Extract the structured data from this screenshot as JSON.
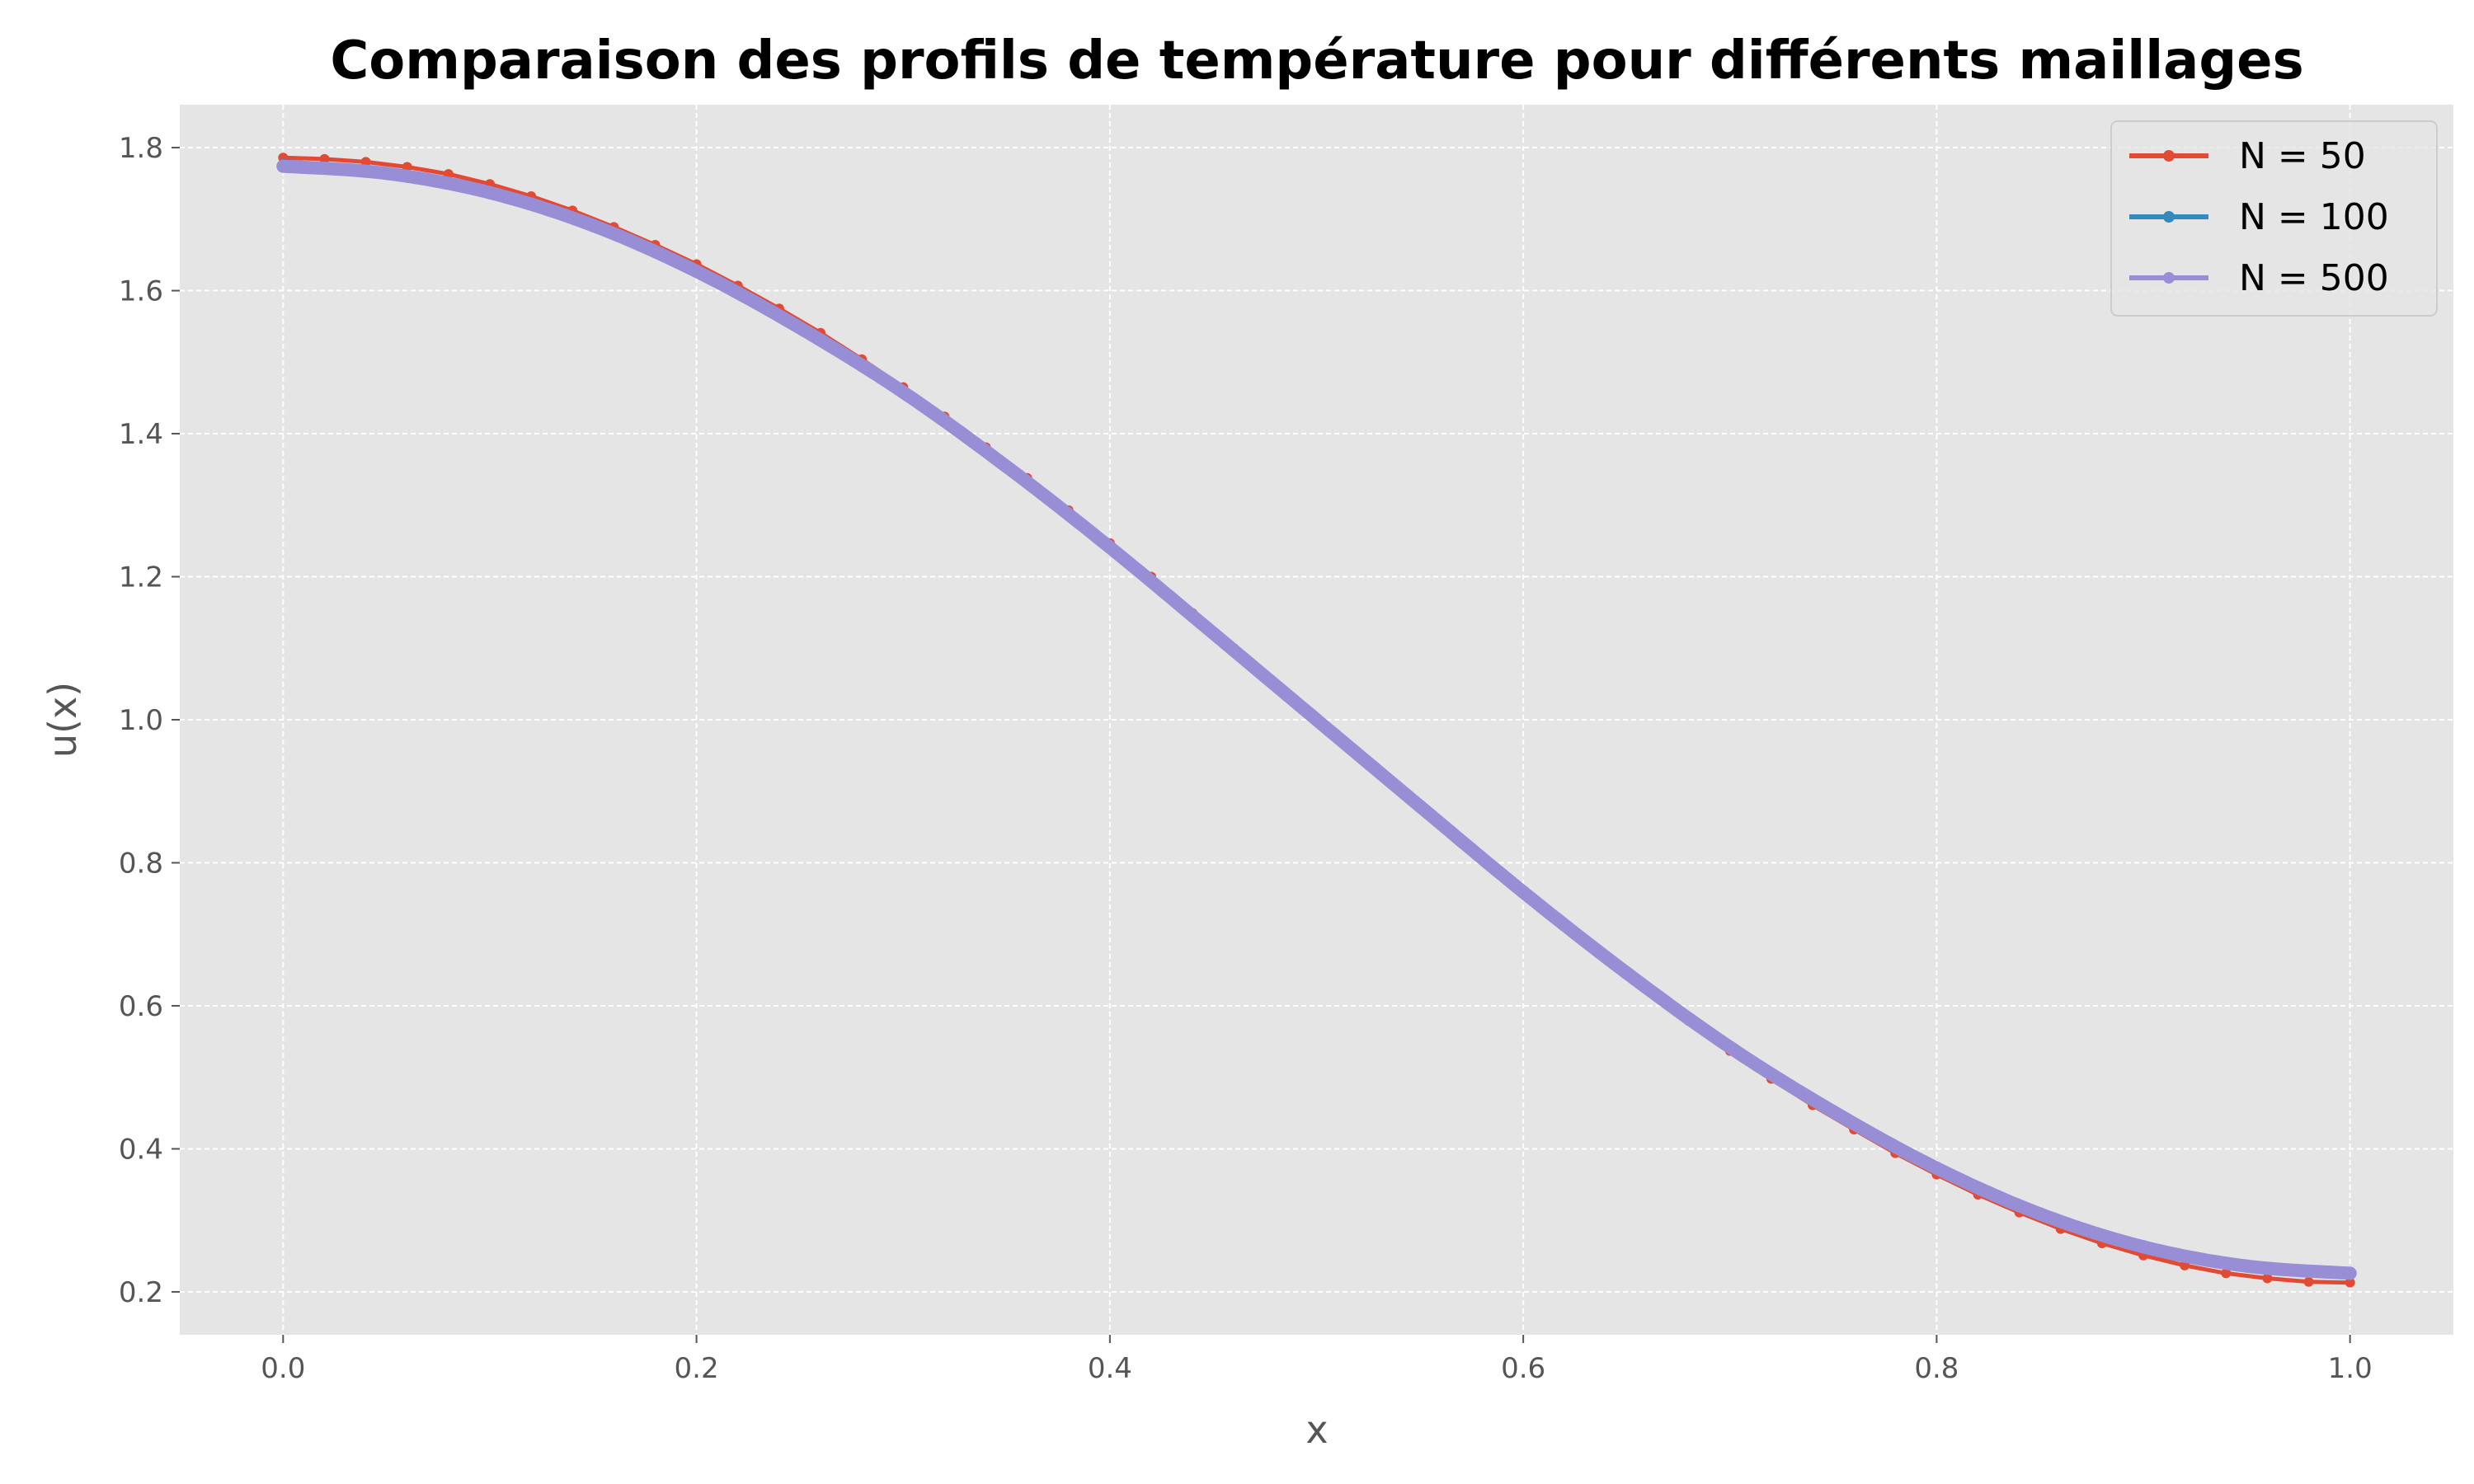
{
  "chart_data": {
    "type": "line",
    "title": "Comparaison des profils de température pour différents maillages",
    "xlabel": "x",
    "ylabel": "u(x)",
    "xlim": [
      -0.05,
      1.05
    ],
    "ylim": [
      0.14,
      1.86
    ],
    "x_ticks": [
      0.0,
      0.2,
      0.4,
      0.6,
      0.8,
      1.0
    ],
    "x_tick_labels": [
      "0.0",
      "0.2",
      "0.4",
      "0.6",
      "0.8",
      "1.0"
    ],
    "y_ticks": [
      0.2,
      0.4,
      0.6,
      0.8,
      1.0,
      1.2,
      1.4,
      1.6,
      1.8
    ],
    "y_tick_labels": [
      "0.2",
      "0.4",
      "0.6",
      "0.8",
      "1.0",
      "1.2",
      "1.4",
      "1.6",
      "1.8"
    ],
    "grid": true,
    "legend_position": "top-right",
    "background": "#e5e5e5",
    "series": [
      {
        "name": "N = 50",
        "color": "#e24a33",
        "x": [
          0.0,
          0.02,
          0.04,
          0.06,
          0.08,
          0.1,
          0.12,
          0.14,
          0.16,
          0.18,
          0.2,
          0.22,
          0.24,
          0.26,
          0.28,
          0.3,
          0.32,
          0.34,
          0.36,
          0.38,
          0.4,
          0.42,
          0.44,
          0.46,
          0.48,
          0.5,
          0.52,
          0.54,
          0.56,
          0.58,
          0.6,
          0.62,
          0.64,
          0.66,
          0.68,
          0.7,
          0.72,
          0.74,
          0.76,
          0.78,
          0.8,
          0.82,
          0.84,
          0.86,
          0.88,
          0.9,
          0.92,
          0.94,
          0.96,
          0.98,
          1.0
        ],
        "y": [
          1.786,
          1.784,
          1.78,
          1.773,
          1.763,
          1.749,
          1.732,
          1.712,
          1.689,
          1.664,
          1.637,
          1.607,
          1.575,
          1.541,
          1.504,
          1.465,
          1.424,
          1.381,
          1.338,
          1.293,
          1.247,
          1.2,
          1.149,
          1.1,
          1.05,
          1.0,
          0.95,
          0.901,
          0.852,
          0.805,
          0.76,
          0.713,
          0.667,
          0.622,
          0.579,
          0.537,
          0.498,
          0.461,
          0.427,
          0.394,
          0.364,
          0.336,
          0.311,
          0.288,
          0.268,
          0.251,
          0.237,
          0.226,
          0.219,
          0.214,
          0.213
        ]
      },
      {
        "name": "N = 100",
        "color": "#348abd",
        "x": [
          0.0,
          0.05,
          0.1,
          0.15,
          0.2,
          0.25,
          0.3,
          0.35,
          0.4,
          0.45,
          0.5,
          0.55,
          0.6,
          0.65,
          0.7,
          0.75,
          0.8,
          0.85,
          0.9,
          0.95,
          1.0
        ],
        "y": [
          1.779,
          1.767,
          1.74,
          1.694,
          1.631,
          1.552,
          1.461,
          1.357,
          1.243,
          1.123,
          1.0,
          0.877,
          0.757,
          0.643,
          0.54,
          0.449,
          0.371,
          0.307,
          0.261,
          0.234,
          0.222
        ]
      },
      {
        "name": "N = 500",
        "color": "#988ed5",
        "x": [
          0.0,
          0.05,
          0.1,
          0.15,
          0.2,
          0.25,
          0.3,
          0.35,
          0.4,
          0.45,
          0.5,
          0.55,
          0.6,
          0.65,
          0.7,
          0.75,
          0.8,
          0.85,
          0.9,
          0.95,
          1.0
        ],
        "y": [
          1.774,
          1.764,
          1.737,
          1.691,
          1.627,
          1.548,
          1.458,
          1.354,
          1.241,
          1.121,
          1.0,
          0.879,
          0.759,
          0.646,
          0.542,
          0.452,
          0.373,
          0.309,
          0.263,
          0.236,
          0.226
        ]
      }
    ]
  }
}
